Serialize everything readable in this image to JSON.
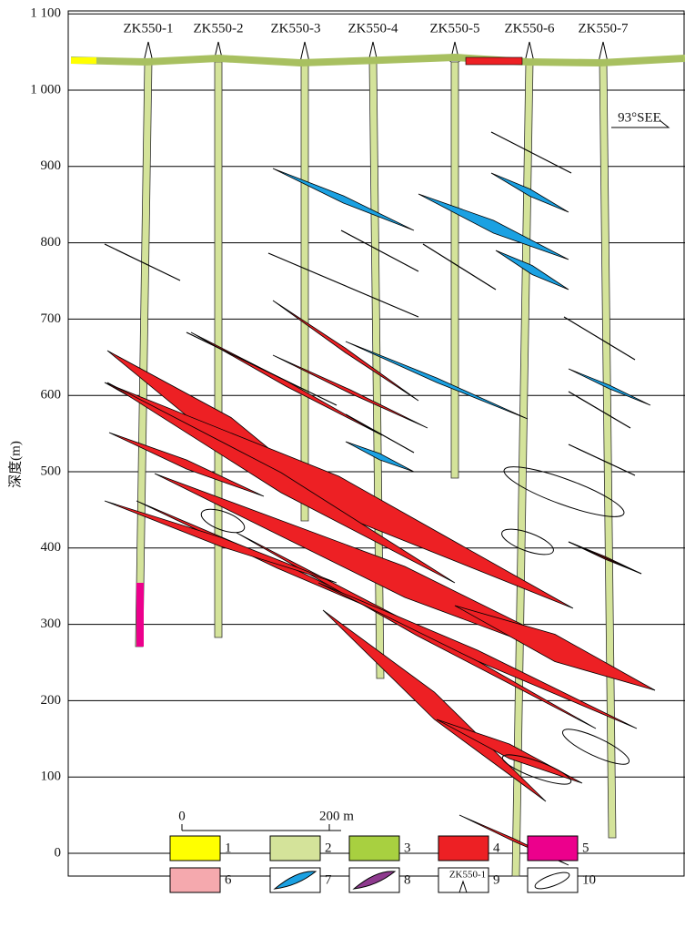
{
  "axis": {
    "label": "深度(m)",
    "ticks": [
      {
        "value": 1100,
        "label": "1 100"
      },
      {
        "value": 1000,
        "label": "1 000"
      },
      {
        "value": 900,
        "label": "900"
      },
      {
        "value": 800,
        "label": "800"
      },
      {
        "value": 700,
        "label": "700"
      },
      {
        "value": 600,
        "label": "600"
      },
      {
        "value": 500,
        "label": "500"
      },
      {
        "value": 400,
        "label": "400"
      },
      {
        "value": 300,
        "label": "300"
      },
      {
        "value": 200,
        "label": "200"
      },
      {
        "value": 100,
        "label": "100"
      },
      {
        "value": 0,
        "label": "0"
      }
    ]
  },
  "boreholes": [
    "ZK550-1",
    "ZK550-2",
    "ZK550-3",
    "ZK550-4",
    "ZK550-5",
    "ZK550-6",
    "ZK550-7"
  ],
  "orientation": "93°SEE",
  "scale_bar": {
    "start": "0",
    "end": "200 m"
  },
  "legend": {
    "items": [
      "1",
      "2",
      "3",
      "4",
      "5",
      "6",
      "7",
      "8",
      "9",
      "10"
    ],
    "symbol_label": "ZK550-1"
  }
}
